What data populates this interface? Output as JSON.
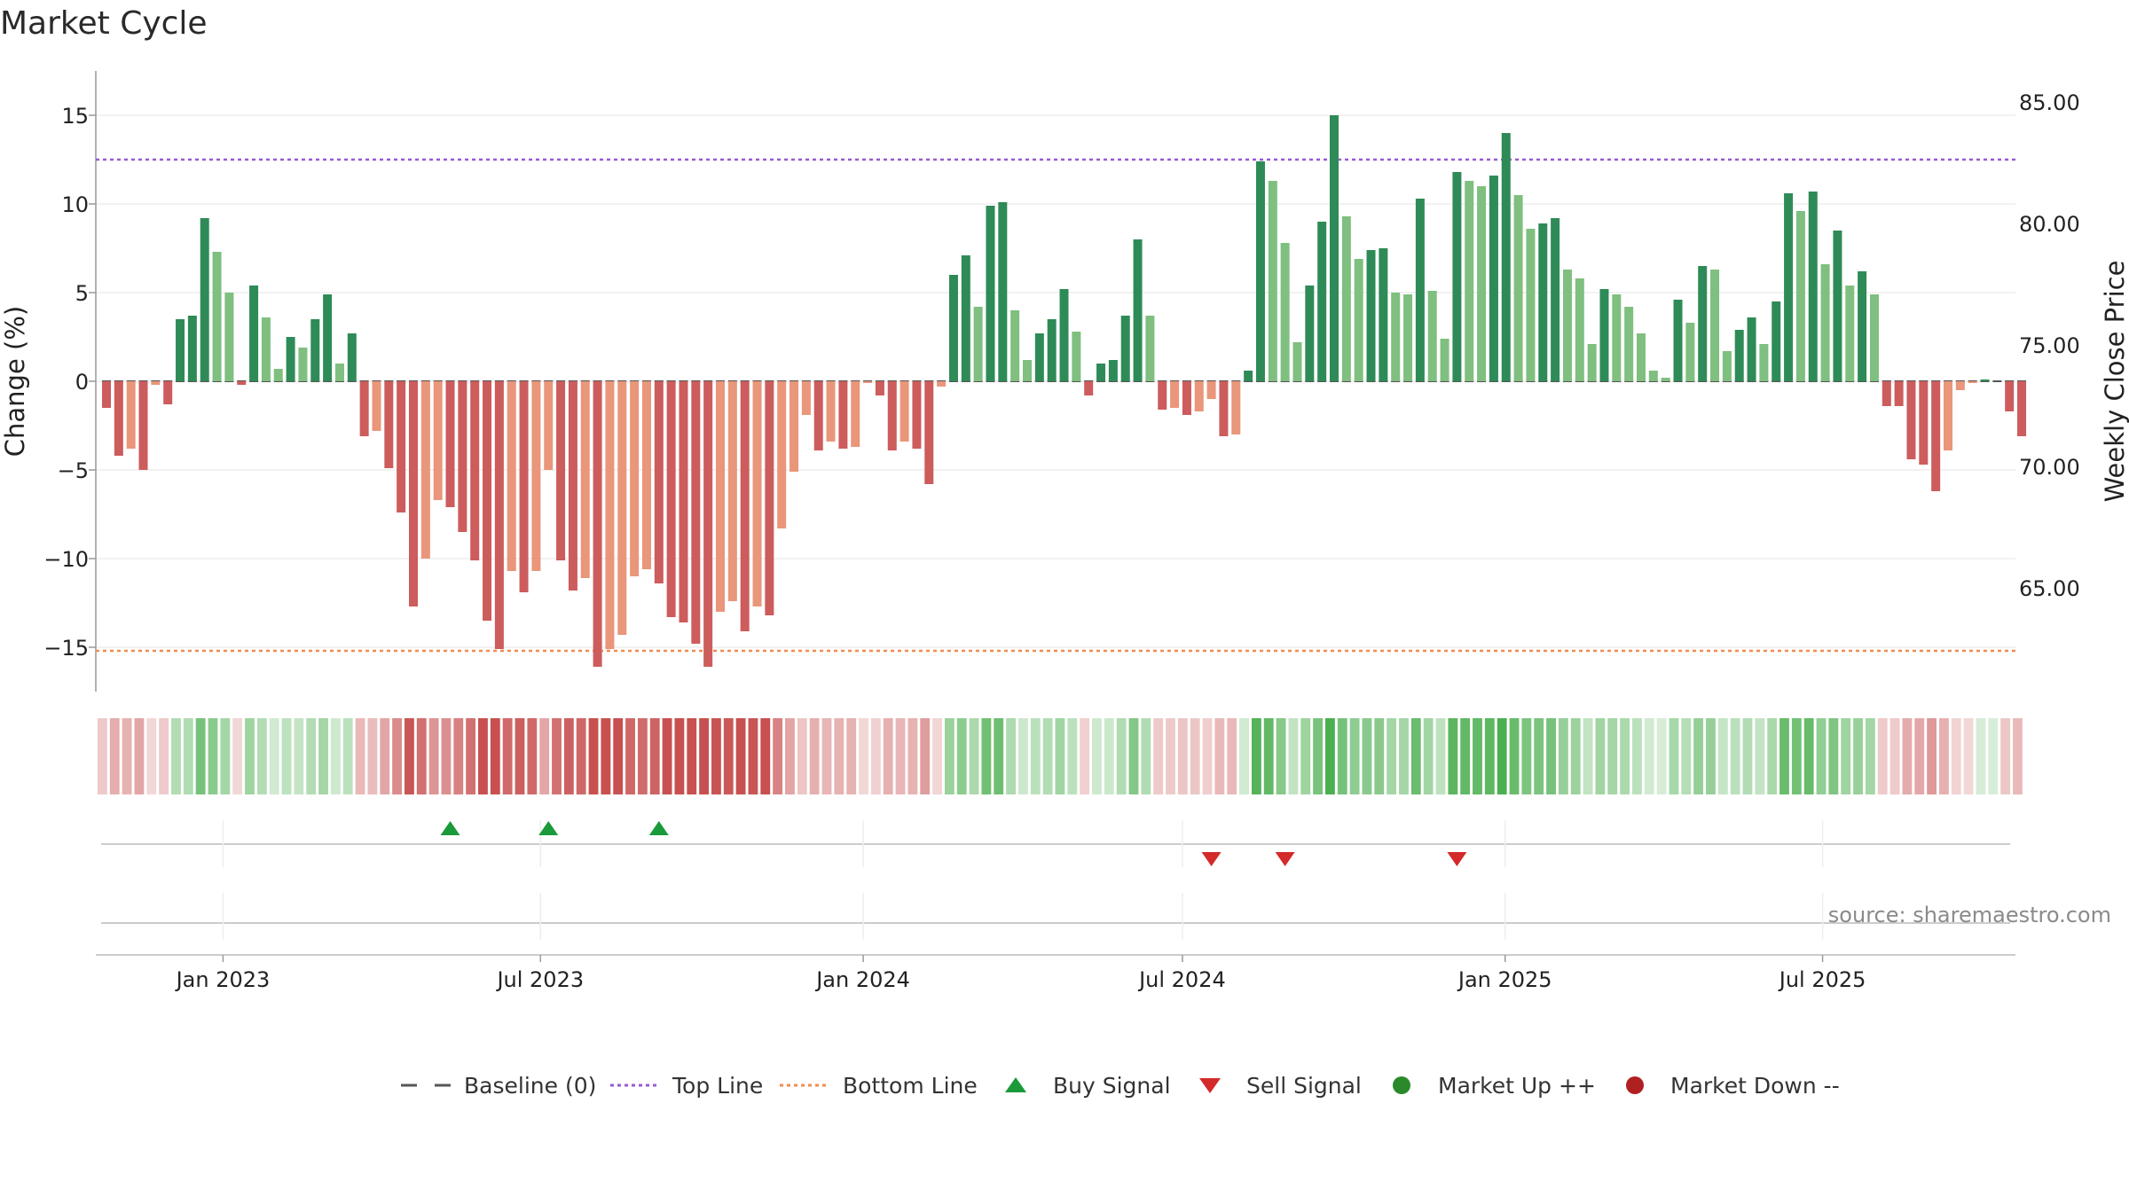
{
  "chart_data": {
    "type": "bar",
    "title": "Market Cycle",
    "ylabel": "Change (%)",
    "y2label": "Weekly Close Price",
    "source": "source: sharemaestro.com",
    "ylim": [
      -17.5,
      17.5
    ],
    "y_ticks": [
      15,
      10,
      5,
      0,
      -5,
      -10,
      -15
    ],
    "y_tick_labels": [
      "15",
      "10",
      "5",
      "0",
      "−5",
      "−10",
      "−15"
    ],
    "y2_ticks": [
      "85.00",
      "80.00",
      "75.00",
      "70.00",
      "65.00"
    ],
    "x_ticks": [
      "Jan 2023",
      "Jul 2023",
      "Jan 2024",
      "Jul 2024",
      "Jan 2025",
      "Jul 2025"
    ],
    "top_line": 12.5,
    "bottom_line": -15.2,
    "start_week": "2022-10-24",
    "week_step_days": 7,
    "values": [
      -1.5,
      -4.2,
      -3.8,
      -5.0,
      -0.2,
      -1.3,
      3.5,
      3.7,
      9.2,
      7.3,
      5.0,
      -0.2,
      5.4,
      3.6,
      0.7,
      2.5,
      1.9,
      3.5,
      4.9,
      1.0,
      2.7,
      -3.1,
      -2.8,
      -4.9,
      -7.4,
      -12.7,
      -10.0,
      -6.7,
      -7.1,
      -8.5,
      -10.1,
      -13.5,
      -15.1,
      -10.7,
      -11.9,
      -10.7,
      -5.0,
      -10.1,
      -11.8,
      -11.1,
      -16.1,
      -15.1,
      -14.3,
      -11.0,
      -10.6,
      -11.4,
      -13.3,
      -13.6,
      -14.8,
      -16.1,
      -13.0,
      -12.4,
      -14.1,
      -12.7,
      -13.2,
      -8.3,
      -5.1,
      -1.9,
      -3.9,
      -3.4,
      -3.8,
      -3.7,
      -0.1,
      -0.8,
      -3.9,
      -3.4,
      -3.8,
      -5.8,
      -0.3,
      6.0,
      7.1,
      4.2,
      9.9,
      10.1,
      4.0,
      1.2,
      2.7,
      3.5,
      5.2,
      2.8,
      -0.8,
      1.0,
      1.2,
      3.7,
      8.0,
      3.7,
      -1.6,
      -1.5,
      -1.9,
      -1.7,
      -1.0,
      -3.1,
      -3.0,
      0.6,
      12.4,
      11.3,
      7.8,
      2.2,
      5.4,
      9.0,
      15.0,
      9.3,
      6.9,
      7.4,
      7.5,
      5.0,
      4.9,
      10.3,
      5.1,
      2.4,
      11.8,
      11.3,
      11.0,
      11.6,
      14.0,
      10.5,
      8.6,
      8.9,
      9.2,
      6.3,
      5.8,
      2.1,
      5.2,
      4.9,
      4.2,
      2.7,
      0.6,
      0.2,
      4.6,
      3.3,
      6.5,
      6.3,
      1.7,
      2.9,
      3.6,
      2.1,
      4.5,
      10.6,
      9.6,
      10.7,
      6.6,
      8.5,
      5.4,
      6.2,
      4.9,
      -1.4,
      -1.4,
      -4.4,
      -4.7,
      -6.2,
      -3.9,
      -0.5,
      -0.1,
      0.1,
      0.0,
      -1.7,
      -3.1
    ],
    "buy_signals": [
      "2023-05-08",
      "2023-07-03",
      "2023-09-04"
    ],
    "sell_signals": [
      "2024-07-15",
      "2024-08-26",
      "2024-12-02"
    ],
    "legend": [
      "Baseline (0)",
      "Top Line",
      "Bottom Line",
      "Buy Signal",
      "Sell Signal",
      "Market Up ++",
      "Market Down --"
    ]
  },
  "colors": {
    "up_strong": "#2e8b57",
    "up_weak": "#7fbf7f",
    "down_strong": "#cd5c5c",
    "down_weak": "#e9967a",
    "top_line": "#9b59d0",
    "bottom_line": "#f08c50",
    "baseline": "#555555",
    "buy": "#1a9a3a",
    "sell": "#d42a2a",
    "market_up": "#2a8a2a",
    "market_down": "#b02020",
    "grid": "#e6e6e6"
  }
}
